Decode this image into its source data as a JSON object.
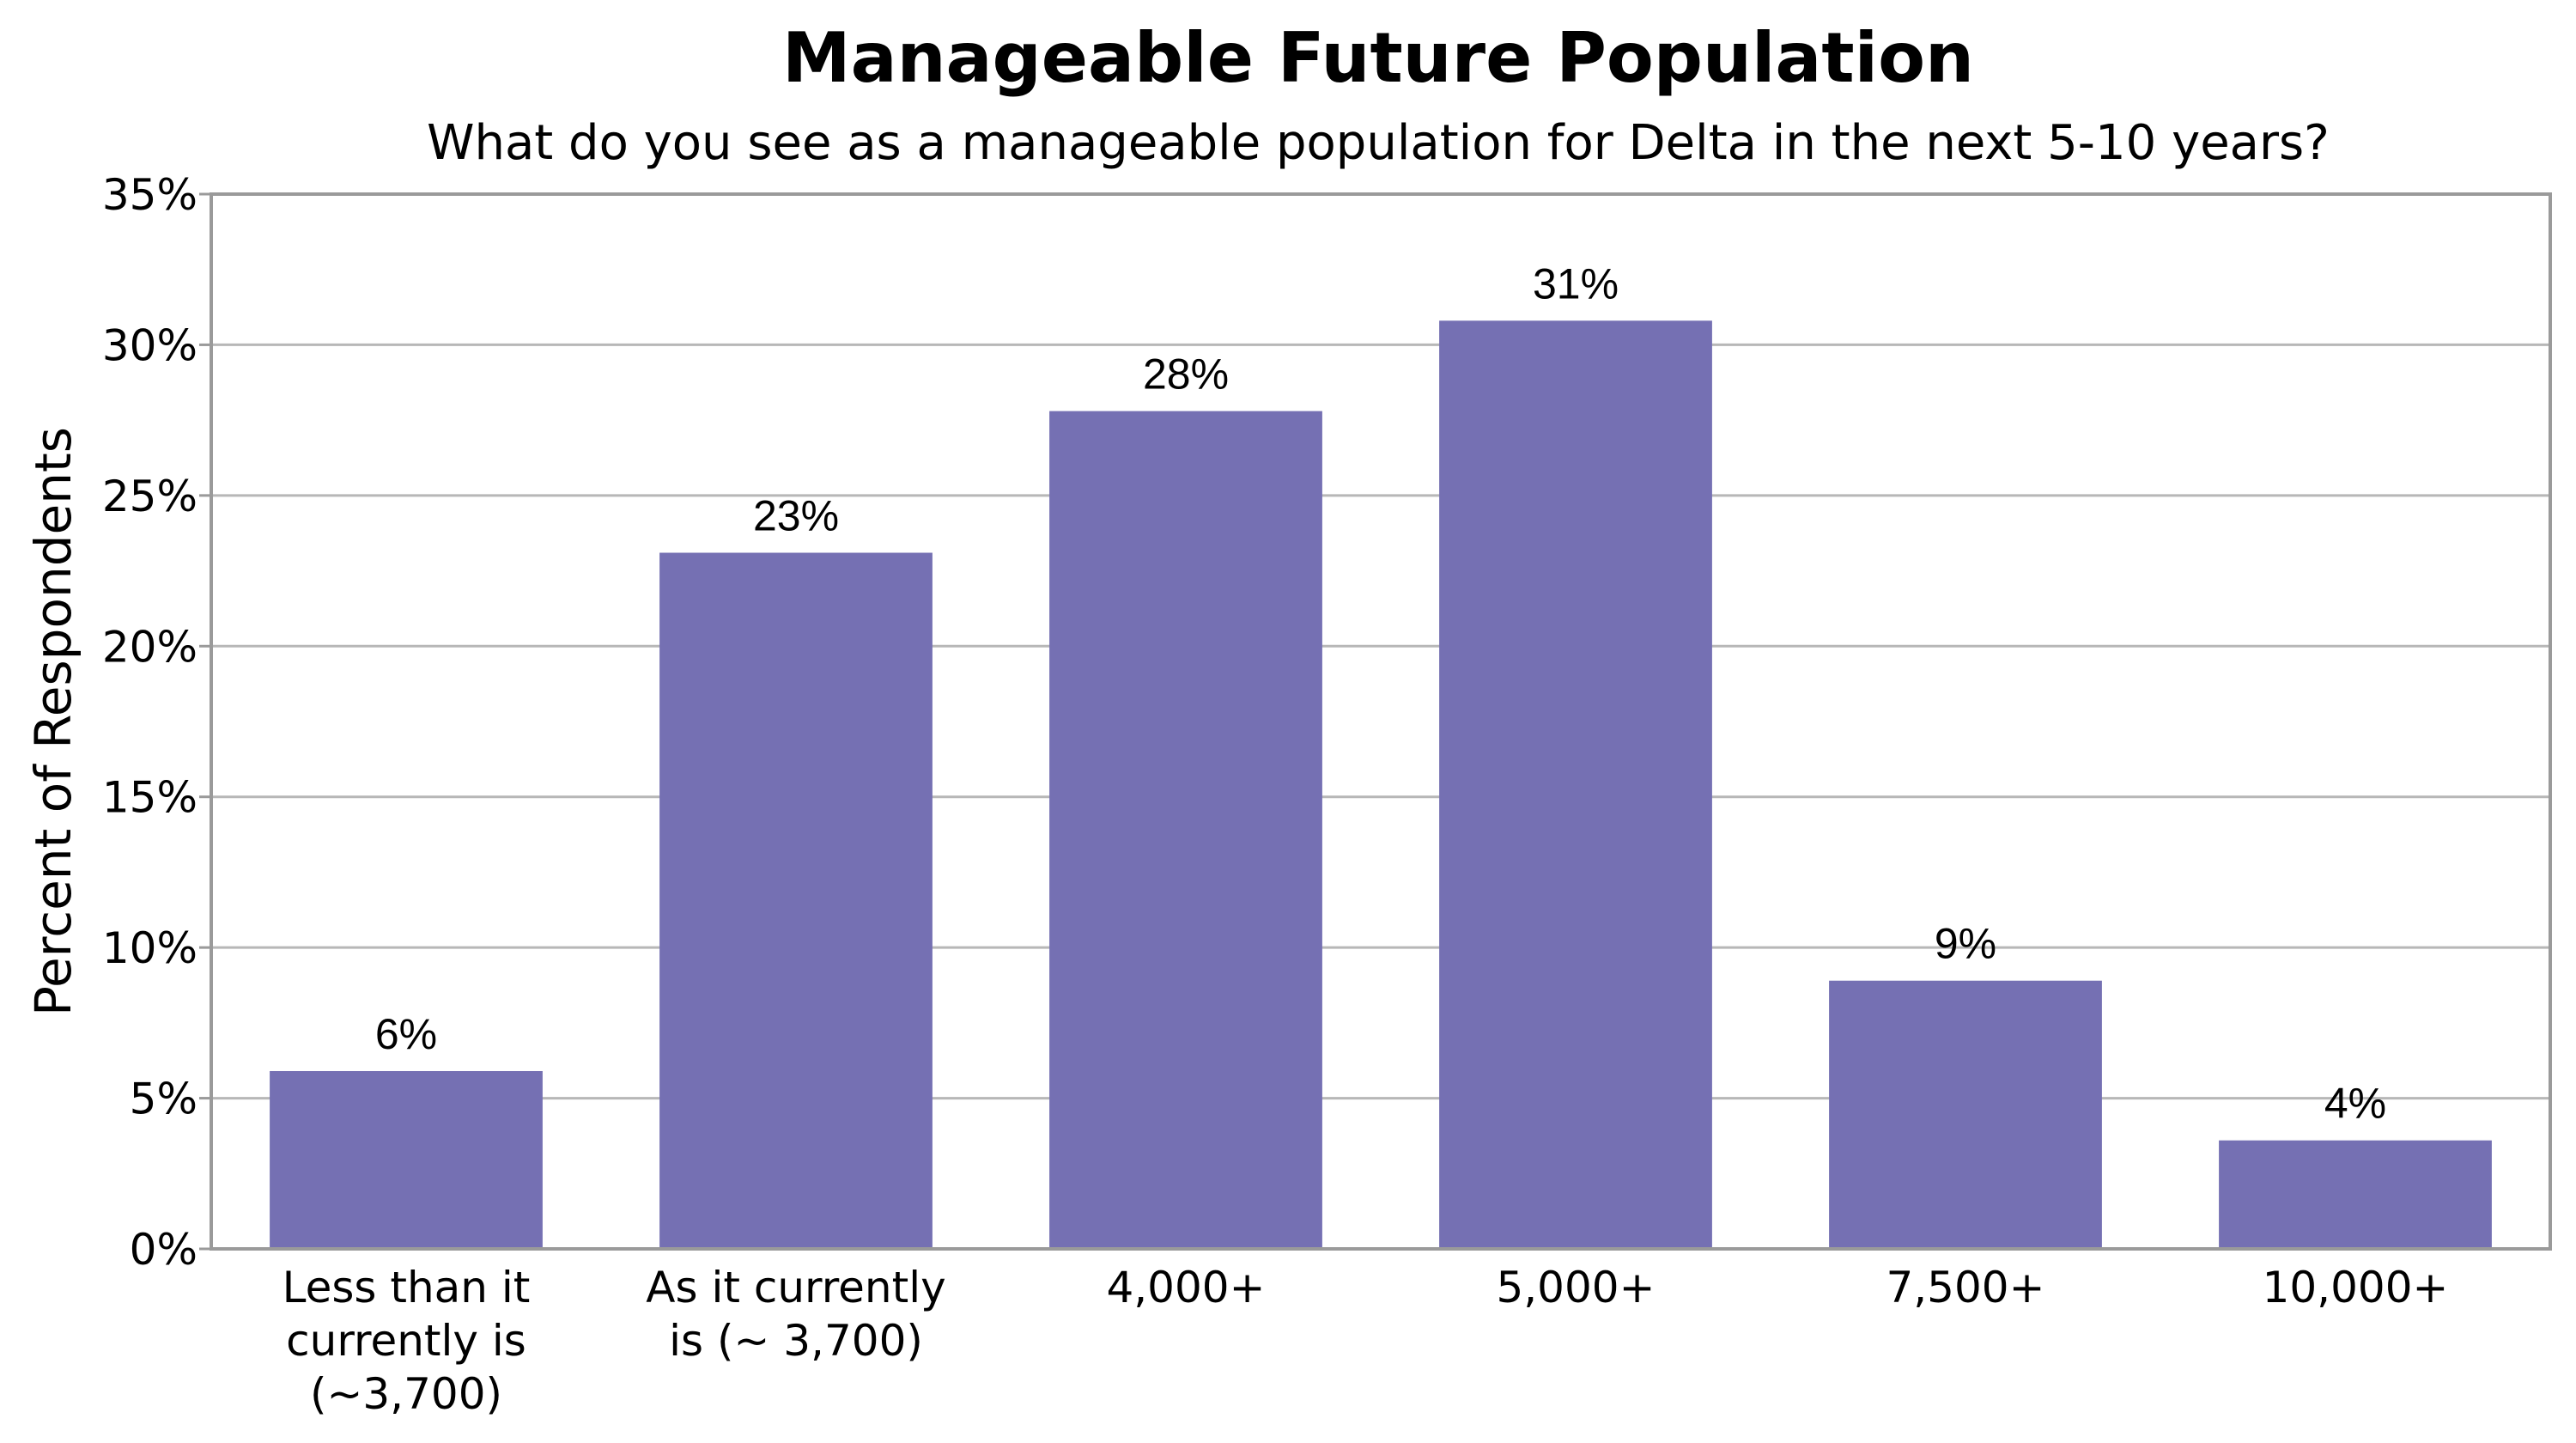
{
  "chart_data": {
    "type": "bar",
    "title": "Manageable Future Population",
    "subtitle": "What do you see as a manageable population for Delta in the next 5-10 years?",
    "xlabel": "",
    "ylabel": "Percent of Respondents",
    "ylim": [
      0,
      35
    ],
    "y_ticks": [
      0,
      5,
      10,
      15,
      20,
      25,
      30,
      35
    ],
    "y_tick_labels": [
      "0%",
      "5%",
      "10%",
      "15%",
      "20%",
      "25%",
      "30%",
      "35%"
    ],
    "categories": [
      [
        "Less than it",
        "currently is",
        "(~3,700)"
      ],
      [
        "As it currently",
        "is (~ 3,700)"
      ],
      [
        "4,000+"
      ],
      [
        "5,000+"
      ],
      [
        "7,500+"
      ],
      [
        "10,000+"
      ]
    ],
    "values": [
      5.9,
      23.1,
      27.8,
      30.8,
      8.9,
      3.6
    ],
    "data_labels": [
      "6%",
      "23%",
      "28%",
      "31%",
      "9%",
      "4%"
    ],
    "grid": true,
    "legend": "none",
    "bar_color": "#7570B3",
    "grid_color": "#B7B7B7",
    "frame_color": "#9A9A9A"
  }
}
